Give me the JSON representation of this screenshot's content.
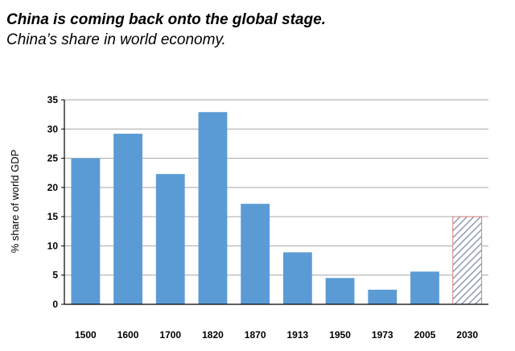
{
  "header": {
    "title": "China is coming back onto the global stage.",
    "subtitle": "China’s share in world economy."
  },
  "chart_data": {
    "type": "bar",
    "categories": [
      "1500",
      "1600",
      "1700",
      "1820",
      "1870",
      "1913",
      "1950",
      "1973",
      "2005",
      "2030"
    ],
    "values": [
      25,
      29.2,
      22.3,
      32.9,
      17.2,
      8.9,
      4.5,
      2.5,
      5.6,
      15
    ],
    "projected": [
      false,
      false,
      false,
      false,
      false,
      false,
      false,
      false,
      false,
      true
    ],
    "xlabel": "",
    "ylabel": "% share of world GDP",
    "ylim": [
      0,
      35
    ],
    "yticks": [
      0,
      5,
      10,
      15,
      20,
      25,
      30,
      35
    ],
    "grid": true,
    "colors": {
      "bar": "#5b9bd5",
      "projected_hatch": "#8e9ab5",
      "projected_border": "#d98080",
      "grid": "#a6a6a6",
      "axis": "#000000"
    }
  }
}
